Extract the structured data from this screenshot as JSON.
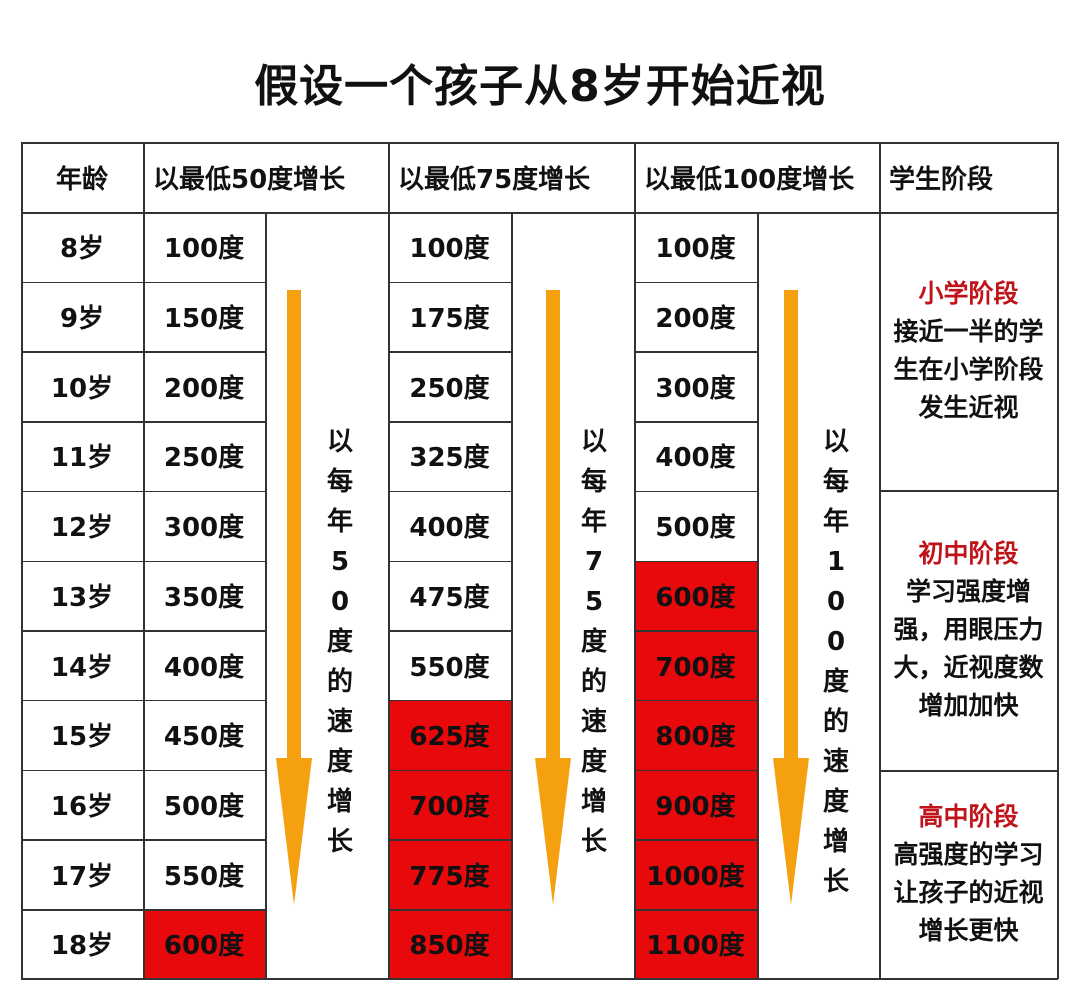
{
  "title": "假设一个孩子从8岁开始近视",
  "chart_data": {
    "type": "table",
    "headers": [
      "年龄",
      "以最低50度增长",
      "以最低75度增长",
      "以最低100度增长",
      "学生阶段"
    ],
    "ages": [
      "8岁",
      "9岁",
      "10岁",
      "11岁",
      "12岁",
      "13岁",
      "14岁",
      "15岁",
      "16岁",
      "17岁",
      "18岁"
    ],
    "series": [
      {
        "values": [
          "100度",
          "150度",
          "200度",
          "250度",
          "300度",
          "350度",
          "400度",
          "450度",
          "500度",
          "550度",
          "600度"
        ],
        "highlight_from": 10,
        "note": "以每年50度的速度增长"
      },
      {
        "values": [
          "100度",
          "175度",
          "250度",
          "325度",
          "400度",
          "475度",
          "550度",
          "625度",
          "700度",
          "775度",
          "850度"
        ],
        "highlight_from": 7,
        "note": "以每年75度的速度增长"
      },
      {
        "values": [
          "100度",
          "200度",
          "300度",
          "400度",
          "500度",
          "600度",
          "700度",
          "800度",
          "900度",
          "1000度",
          "1100度"
        ],
        "highlight_from": 5,
        "note": "以每年100度的速度增长"
      }
    ],
    "stages": [
      {
        "name": "小学阶段",
        "lines": [
          "接近一半的学",
          "生在小学阶段",
          "发生近视"
        ]
      },
      {
        "name": "初中阶段",
        "lines": [
          "学习强度增",
          "强，用眼压力",
          "大，近视度数",
          "增加加快"
        ]
      },
      {
        "name": "高中阶段",
        "lines": [
          "高强度的学习",
          "让孩子的近视",
          "增长更快"
        ]
      }
    ],
    "highlight_color": "#e8090c",
    "arrow_color": "#f5a00f"
  }
}
